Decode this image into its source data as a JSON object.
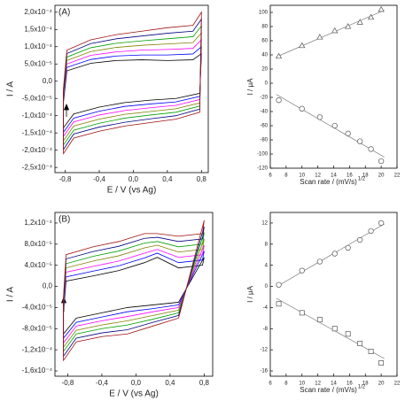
{
  "chart_data": [
    {
      "type": "line",
      "panel_label": "(A)",
      "xlabel": "E / V (vs Ag)",
      "ylabel": "I / A",
      "xlim": [
        -0.92,
        0.88
      ],
      "ylim": [
        -0.000265,
        0.00022
      ],
      "xticks": [
        {
          "value": -0.8,
          "label": "-0,8"
        },
        {
          "value": -0.4,
          "label": "-0,4"
        },
        {
          "value": 0.0,
          "label": "0,0"
        },
        {
          "value": 0.4,
          "label": "0,4"
        },
        {
          "value": 0.8,
          "label": "0,8"
        }
      ],
      "yticks": [
        {
          "value": -0.00025,
          "label": "-2,5x10⁻⁴"
        },
        {
          "value": -0.0002,
          "label": "-2,0x10⁻⁴"
        },
        {
          "value": -0.00015,
          "label": "-1,5x10⁻⁴"
        },
        {
          "value": -0.0001,
          "label": "-1,0x10⁻⁴"
        },
        {
          "value": -5e-05,
          "label": "-5,0x10⁻⁵"
        },
        {
          "value": 0.0,
          "label": "0,0"
        },
        {
          "value": 5e-05,
          "label": "5,0x10⁻⁵"
        },
        {
          "value": 0.0001,
          "label": "1,0x10⁻⁴"
        },
        {
          "value": 0.00015,
          "label": "1,5x10⁻⁴"
        },
        {
          "value": 0.0002,
          "label": "2,0x10⁻⁴"
        }
      ],
      "x": [
        -0.82,
        -0.78,
        -0.5,
        -0.2,
        0.1,
        0.4,
        0.7,
        0.8,
        0.78,
        0.5,
        0.2,
        -0.1,
        -0.4,
        -0.7,
        -0.82,
        -0.82
      ],
      "series": [
        {
          "color": "#000000",
          "values": [
            -6e-05,
            3e-05,
            5.2e-05,
            6e-05,
            6.2e-05,
            6e-05,
            6.2e-05,
            8e-05,
            -3.5e-05,
            -5e-05,
            -5.5e-05,
            -6.2e-05,
            -7.5e-05,
            -9.5e-05,
            -0.000135,
            -6e-05
          ]
        },
        {
          "color": "#0000ff",
          "values": [
            -5.3e-05,
            4e-05,
            6.3e-05,
            7.3e-05,
            7.6e-05,
            7.6e-05,
            7.9e-05,
            0.0001,
            -4.4e-05,
            -6e-05,
            -6.6e-05,
            -7.3e-05,
            -8.7e-05,
            -0.000107,
            -0.000148,
            -5.3e-05
          ]
        },
        {
          "color": "#ff00ff",
          "values": [
            -4.7e-05,
            5e-05,
            7.5e-05,
            8.5e-05,
            9e-05,
            9.2e-05,
            9.5e-05,
            0.00012,
            -5.3e-05,
            -7e-05,
            -7.7e-05,
            -8.5e-05,
            -9.8e-05,
            -0.000118,
            -0.00016,
            -4.7e-05
          ]
        },
        {
          "color": "#808000",
          "values": [
            -4e-05,
            6e-05,
            8.6e-05,
            9.8e-05,
            0.000104,
            0.000108,
            0.000112,
            0.00014,
            -6.3e-05,
            -8e-05,
            -8.8e-05,
            -9.6e-05,
            -0.00011,
            -0.00013,
            -0.000173,
            -4e-05
          ]
        },
        {
          "color": "#00a000",
          "values": [
            -3.3e-05,
            7e-05,
            9.7e-05,
            0.00011,
            0.000117,
            0.000123,
            0.000129,
            0.00016,
            -7.2e-05,
            -9e-05,
            -9.8e-05,
            -0.000107,
            -0.000122,
            -0.000142,
            -0.000185,
            -3.3e-05
          ]
        },
        {
          "color": "#000080",
          "values": [
            -2.7e-05,
            8e-05,
            0.000109,
            0.000123,
            0.000131,
            0.000139,
            0.000145,
            0.00018,
            -8.1e-05,
            -0.0001,
            -0.000109,
            -0.000119,
            -0.000133,
            -0.000153,
            -0.000198,
            -2.7e-05
          ]
        },
        {
          "color": "#a01010",
          "values": [
            -2e-05,
            9e-05,
            0.00012,
            0.000135,
            0.000145,
            0.000155,
            0.000162,
            0.0002,
            -9e-05,
            -0.00011,
            -0.00012,
            -0.00013,
            -0.000145,
            -0.000165,
            -0.00021,
            -2e-05
          ]
        }
      ]
    },
    {
      "type": "scatter",
      "xlabel": "Scan rate / (mV/s)",
      "xlabel_sup": "1/2",
      "ylabel": "I / μA",
      "fit_line": true,
      "xlim": [
        6,
        22
      ],
      "ylim": [
        -120,
        110
      ],
      "xticks": [
        6,
        8,
        10,
        12,
        14,
        16,
        18,
        20,
        22
      ],
      "yticks": [
        -120,
        -100,
        -80,
        -60,
        -40,
        -20,
        0,
        20,
        40,
        60,
        80,
        100
      ],
      "x": [
        7.07,
        10,
        12.25,
        14.14,
        15.81,
        17.32,
        18.71,
        20
      ],
      "series": [
        {
          "marker": "triangle",
          "color": "#555555",
          "values": [
            38,
            53,
            65,
            74,
            80,
            86,
            93,
            104
          ]
        },
        {
          "marker": "circle",
          "color": "#555555",
          "values": [
            -24,
            -36,
            -48,
            -60,
            -71,
            -82,
            -93,
            -110
          ]
        }
      ]
    },
    {
      "type": "line",
      "panel_label": "(B)",
      "xlabel": "E / V (vs Ag)",
      "ylabel": "I / A",
      "xlim": [
        -0.95,
        0.9
      ],
      "ylim": [
        -0.00017,
        0.00014
      ],
      "xticks": [
        {
          "value": -0.8,
          "label": "-0,8"
        },
        {
          "value": -0.4,
          "label": "-0,4"
        },
        {
          "value": 0.0,
          "label": "0,0"
        },
        {
          "value": 0.4,
          "label": "0,4"
        },
        {
          "value": 0.8,
          "label": "0,8"
        }
      ],
      "yticks": [
        {
          "value": -0.00016,
          "label": "-1,6x10⁻⁴"
        },
        {
          "value": -0.00012,
          "label": "-1,2x10⁻⁴"
        },
        {
          "value": -8e-05,
          "label": "-8,0x10⁻⁵"
        },
        {
          "value": -4e-05,
          "label": "-4,0x10⁻⁵"
        },
        {
          "value": 0.0,
          "label": "0,0"
        },
        {
          "value": 4e-05,
          "label": "4,0x10⁻⁵"
        },
        {
          "value": 8e-05,
          "label": "8,0x10⁻⁵"
        },
        {
          "value": 0.00012,
          "label": "1,2x10⁻⁴"
        }
      ],
      "x": [
        -0.85,
        -0.82,
        -0.5,
        -0.2,
        0.1,
        0.25,
        0.5,
        0.78,
        0.8,
        0.5,
        0.2,
        -0.1,
        -0.4,
        -0.7,
        -0.85,
        -0.85
      ],
      "series": [
        {
          "color": "#000000",
          "values": [
            -5e-05,
            1e-05,
            2e-05,
            3e-05,
            4.5e-05,
            5.5e-05,
            3.5e-05,
            4e-05,
            5.5e-05,
            -3e-05,
            -3.5e-05,
            -4e-05,
            -5e-05,
            -6e-05,
            -9e-05,
            -5e-05
          ]
        },
        {
          "color": "#0000ff",
          "values": [
            -4.5e-05,
            1.8e-05,
            2.9e-05,
            3.9e-05,
            5.4e-05,
            6.3e-05,
            4.5e-05,
            5e-05,
            6.7e-05,
            -3.5e-05,
            -4.2e-05,
            -4.8e-05,
            -5.8e-05,
            -6.8e-05,
            -9.8e-05,
            -4.5e-05
          ]
        },
        {
          "color": "#ff00ff",
          "values": [
            -4e-05,
            2.7e-05,
            3.8e-05,
            4.8e-05,
            6.3e-05,
            7e-05,
            5.5e-05,
            6e-05,
            7.8e-05,
            -4e-05,
            -4.8e-05,
            -5.7e-05,
            -6.5e-05,
            -7.5e-05,
            -0.000107,
            -4e-05
          ]
        },
        {
          "color": "#808000",
          "values": [
            -3.5e-05,
            3.5e-05,
            4.8e-05,
            5.8e-05,
            7.3e-05,
            7.8e-05,
            6.5e-05,
            7e-05,
            9e-05,
            -4.5e-05,
            -5.5e-05,
            -6.5e-05,
            -7.3e-05,
            -8.3e-05,
            -0.000115,
            -3.5e-05
          ]
        },
        {
          "color": "#00a000",
          "values": [
            -3e-05,
            4.3e-05,
            5.7e-05,
            6.7e-05,
            8.2e-05,
            8.5e-05,
            7.5e-05,
            8e-05,
            0.000102,
            -5e-05,
            -6.2e-05,
            -7.3e-05,
            -8e-05,
            -9e-05,
            -0.000123,
            -3e-05
          ]
        },
        {
          "color": "#000080",
          "values": [
            -2.5e-05,
            5.2e-05,
            6.6e-05,
            7.6e-05,
            9.1e-05,
            9.3e-05,
            8.5e-05,
            9e-05,
            0.000113,
            -5.5e-05,
            -6.8e-05,
            -8.2e-05,
            -8.8e-05,
            -9.8e-05,
            -0.000132,
            -2.5e-05
          ]
        },
        {
          "color": "#a01010",
          "values": [
            -2e-05,
            6e-05,
            7.5e-05,
            8.5e-05,
            0.0001,
            0.0001,
            9.5e-05,
            0.0001,
            0.000125,
            -6e-05,
            -7.5e-05,
            -9e-05,
            -9.5e-05,
            -0.000105,
            -0.00014,
            -2e-05
          ]
        }
      ]
    },
    {
      "type": "scatter",
      "xlabel": "Scan rate / (mV/s)",
      "xlabel_sup": "1/2",
      "ylabel": "I / μA",
      "fit_line": true,
      "xlim": [
        6,
        22
      ],
      "ylim": [
        -17,
        14
      ],
      "xticks": [
        6,
        8,
        10,
        12,
        14,
        16,
        18,
        20,
        22
      ],
      "yticks": [
        -16,
        -12,
        -8,
        -4,
        0,
        4,
        8,
        12
      ],
      "x": [
        7.07,
        10,
        12.25,
        14.14,
        15.81,
        17.32,
        18.71,
        20
      ],
      "series": [
        {
          "marker": "circle",
          "color": "#555555",
          "values": [
            0.3,
            3,
            4.7,
            6.2,
            7.3,
            8.8,
            10.5,
            12
          ]
        },
        {
          "marker": "square",
          "color": "#555555",
          "values": [
            -3.3,
            -5,
            -6.3,
            -8,
            -9,
            -10.8,
            -12.3,
            -14.5
          ]
        }
      ]
    }
  ]
}
